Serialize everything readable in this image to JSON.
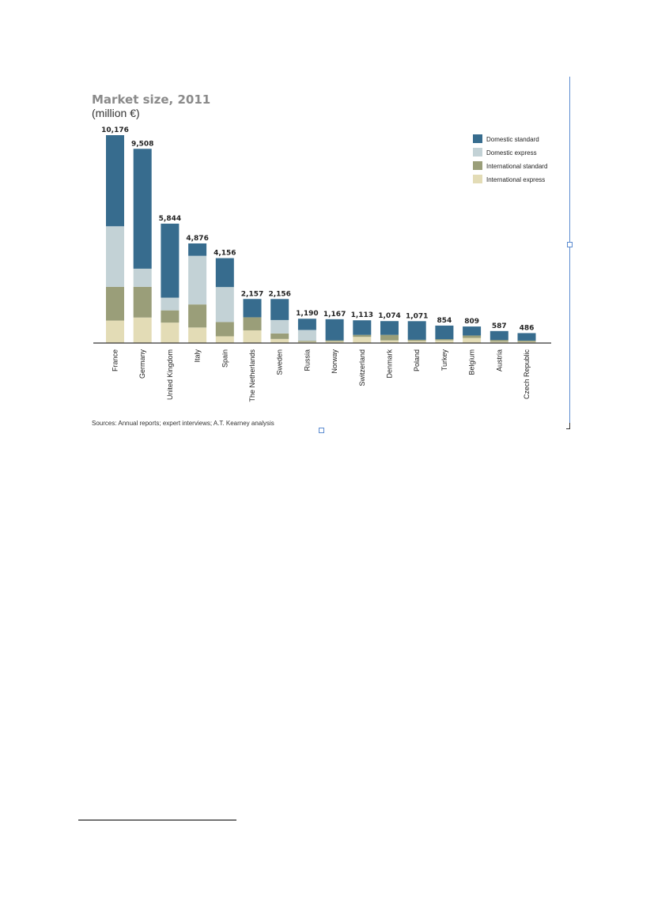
{
  "chart_data": {
    "type": "bar",
    "stacked": true,
    "title": "Market size, 2011",
    "subtitle": "(million €)",
    "categories": [
      "France",
      "Germany",
      "United Kingdom",
      "Italy",
      "Spain",
      "The Netherlands",
      "Sweden",
      "Russia",
      "Norway",
      "Switzerland",
      "Denmark",
      "Poland",
      "Turkey",
      "Belgium",
      "Austria",
      "Czech Republic"
    ],
    "totals": [
      10176,
      9508,
      5844,
      4876,
      4156,
      2157,
      2156,
      1190,
      1167,
      1113,
      1074,
      1071,
      854,
      809,
      587,
      486
    ],
    "total_labels": [
      "10,176",
      "9,508",
      "5,844",
      "4,876",
      "4,156",
      "2,157",
      "2,156",
      "1,190",
      "1,167",
      "1,113",
      "1,074",
      "1,071",
      "854",
      "809",
      "587",
      "486"
    ],
    "series": [
      {
        "name": "International express",
        "color": "#e3dcb6",
        "values": [
          1100,
          1250,
          1000,
          760,
          330,
          620,
          200,
          60,
          80,
          300,
          130,
          100,
          130,
          250,
          70,
          60
        ]
      },
      {
        "name": "International standard",
        "color": "#9a9e79",
        "values": [
          1650,
          1500,
          600,
          1130,
          700,
          640,
          270,
          50,
          50,
          100,
          270,
          60,
          60,
          120,
          80,
          60
        ]
      },
      {
        "name": "Domestic express",
        "color": "#c3d2d6",
        "values": [
          2966,
          890,
          620,
          2380,
          1710,
          0,
          656,
          530,
          0,
          0,
          0,
          0,
          0,
          0,
          0,
          0
        ]
      },
      {
        "name": "Domestic standard",
        "color": "#376c8e",
        "values": [
          4460,
          5868,
          3624,
          606,
          1416,
          897,
          1030,
          550,
          1037,
          713,
          674,
          911,
          664,
          439,
          437,
          366
        ]
      }
    ],
    "legend_order": [
      "Domestic standard",
      "Domestic express",
      "International standard",
      "International express"
    ],
    "legend_position": "top-right",
    "ylim": [
      0,
      10500
    ],
    "grid": false,
    "source": "Sources: Annual reports; expert interviews; A.T. Kearney analysis"
  }
}
